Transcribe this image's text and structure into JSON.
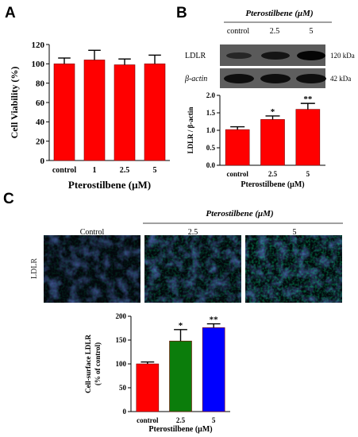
{
  "panels": {
    "a": {
      "letter": "A"
    },
    "b": {
      "letter": "B",
      "treatment_header": "Pterostilbene (μM)",
      "lane_labels": [
        "control",
        "2.5",
        "5"
      ],
      "blot_rows": [
        {
          "protein": "LDLR",
          "size": "120 kDa"
        },
        {
          "protein": "β-actin",
          "size": "42 kDa"
        }
      ]
    },
    "c": {
      "letter": "C",
      "treatment_header": "Pterostilbene (μM)",
      "image_labels": [
        "Control",
        "2.5",
        "5"
      ],
      "row_label": "LDLR"
    }
  },
  "chart_data": [
    {
      "id": "viability",
      "type": "bar",
      "categories": [
        "control",
        "1",
        "2.5",
        "5"
      ],
      "values": [
        100,
        104,
        99,
        100
      ],
      "errors": [
        6,
        10,
        6,
        9
      ],
      "significance": [
        "",
        "",
        "",
        ""
      ],
      "colors": [
        "#ff0000",
        "#ff0000",
        "#ff0000",
        "#ff0000"
      ],
      "ylabel": "Cell Viability (%)",
      "xlabel": "Pterostilbene (μM)",
      "ylim": [
        0,
        120
      ],
      "yticks": [
        0,
        20,
        40,
        60,
        80,
        100,
        120
      ]
    },
    {
      "id": "ldlr-ratio",
      "type": "bar",
      "categories": [
        "control",
        "2.5",
        "5"
      ],
      "values": [
        1.02,
        1.31,
        1.6
      ],
      "errors": [
        0.08,
        0.1,
        0.17
      ],
      "significance": [
        "",
        "*",
        "**"
      ],
      "colors": [
        "#ff0000",
        "#ff0000",
        "#ff0000"
      ],
      "ylabel": "LDLR / β-actin",
      "xlabel": "Pterostilbene (μM)",
      "ylim": [
        0,
        2.0
      ],
      "yticks": [
        "0.0",
        "0.5",
        "1.0",
        "1.5",
        "2.0"
      ]
    },
    {
      "id": "surface-ldlr",
      "type": "bar",
      "categories": [
        "control",
        "2.5",
        "5"
      ],
      "values": [
        100,
        148,
        176
      ],
      "errors": [
        4,
        24,
        8
      ],
      "significance": [
        "",
        "*",
        "**"
      ],
      "colors": [
        "#ff0000",
        "#0b7d0b",
        "#0000ff"
      ],
      "ylabel": "Cell-surface LDLR",
      "ylabel2": "(% of control)",
      "xlabel": "Pterostilbene (μM)",
      "ylim": [
        0,
        200
      ],
      "yticks": [
        0,
        50,
        100,
        150,
        200
      ]
    }
  ]
}
